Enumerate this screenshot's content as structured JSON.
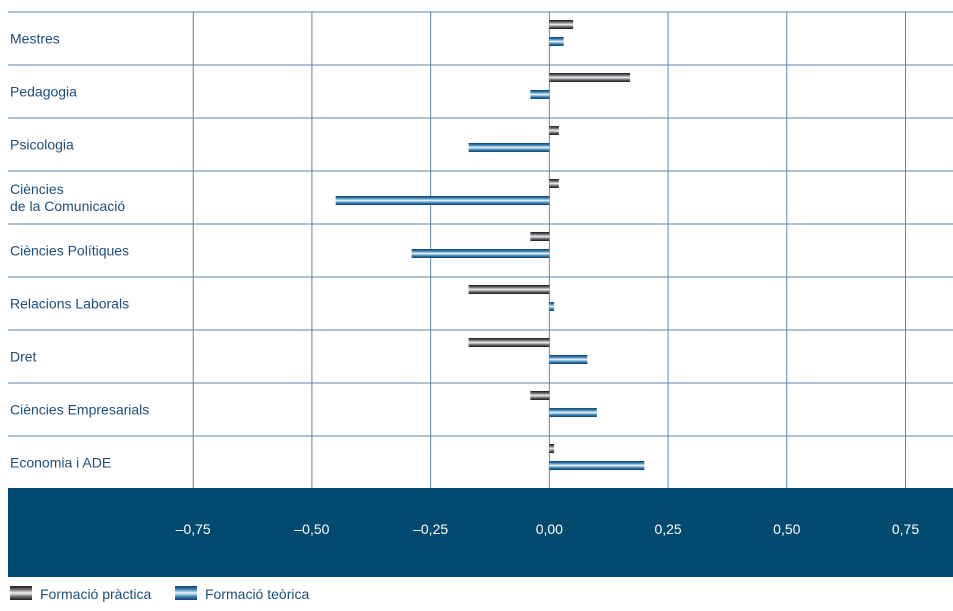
{
  "chart_data": {
    "type": "bar",
    "orientation": "horizontal",
    "categories": [
      [
        "Mestres"
      ],
      [
        "Pedagogia"
      ],
      [
        "Psicologia"
      ],
      [
        "Ciències",
        "de la Comunicació"
      ],
      [
        "Ciències Polítiques"
      ],
      [
        "Relacions Laborals"
      ],
      [
        "Dret"
      ],
      [
        "Ciències Empresarials"
      ],
      [
        "Economia i ADE"
      ]
    ],
    "series": [
      {
        "name": "Formació pràctica",
        "values": [
          0.05,
          0.17,
          0.02,
          0.02,
          -0.04,
          -0.17,
          -0.17,
          -0.04,
          0.01
        ]
      },
      {
        "name": "Formació teòrica",
        "values": [
          0.03,
          -0.04,
          -0.17,
          -0.45,
          -0.29,
          0.01,
          0.08,
          0.1,
          0.2
        ]
      }
    ],
    "xlim": [
      -1.14,
      0.85
    ],
    "xticks": [
      -0.75,
      -0.5,
      -0.25,
      0.0,
      0.25,
      0.5,
      0.75
    ],
    "xtick_labels": [
      "–0,75",
      "–0,50",
      "–0,25",
      "0,00",
      "0,25",
      "0,50",
      "0,75"
    ],
    "grid": true,
    "legend_position": "bottom-left",
    "colors": {
      "axis_band": "#004a70",
      "grid": "#5d86a8",
      "label_text": "#1d4f7c",
      "practica": "#2f2f2f",
      "teorica": "#1b5d8c"
    }
  }
}
